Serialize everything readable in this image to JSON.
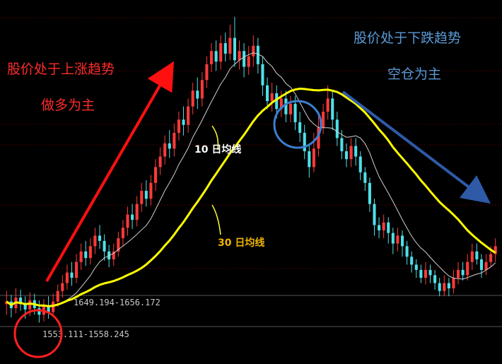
{
  "annotations": {
    "uptrend_title": "股价处于上涨趋势",
    "uptrend_action": "做多为主",
    "downtrend_title": "股价处于下跌趋势",
    "downtrend_action": "空仓为主",
    "ma10_label": "10 日均线",
    "ma30_label": "30 日均线",
    "band_upper": "1649.194-1656.172",
    "band_lower": "1553.111-1558.245"
  },
  "colors": {
    "up_candle": "#ff3a3a",
    "down_candle": "#4fe0e8",
    "ma10": "#d0d0d0",
    "ma30": "#ffff00",
    "arrow_up": "#ff1010",
    "arrow_down": "#2e5aa8",
    "circle_red": "#ff2020",
    "circle_blue": "#3b7fd0"
  },
  "chart_data": {
    "type": "candlestick",
    "title": "",
    "xlabel": "",
    "ylabel": "",
    "ylim": [
      1520,
      1780
    ],
    "series": [
      {
        "name": "10 日均线",
        "type": "line"
      },
      {
        "name": "30 日均线",
        "type": "line"
      }
    ],
    "candles": [
      [
        1560,
        1562,
        1570,
        1552
      ],
      [
        1562,
        1557,
        1567,
        1550
      ],
      [
        1557,
        1565,
        1572,
        1553
      ],
      [
        1565,
        1560,
        1571,
        1555
      ],
      [
        1560,
        1556,
        1566,
        1549
      ],
      [
        1556,
        1563,
        1569,
        1551
      ],
      [
        1563,
        1557,
        1568,
        1552
      ],
      [
        1557,
        1552,
        1563,
        1546
      ],
      [
        1552,
        1559,
        1564,
        1547
      ],
      [
        1559,
        1554,
        1566,
        1549
      ],
      [
        1554,
        1562,
        1568,
        1550
      ],
      [
        1562,
        1570,
        1575,
        1558
      ],
      [
        1570,
        1576,
        1582,
        1565
      ],
      [
        1576,
        1584,
        1590,
        1571
      ],
      [
        1584,
        1580,
        1592,
        1574
      ],
      [
        1580,
        1592,
        1598,
        1576
      ],
      [
        1592,
        1600,
        1606,
        1586
      ],
      [
        1600,
        1595,
        1608,
        1589
      ],
      [
        1595,
        1604,
        1610,
        1590
      ],
      [
        1604,
        1612,
        1618,
        1598
      ],
      [
        1612,
        1608,
        1620,
        1602
      ],
      [
        1608,
        1600,
        1613,
        1593
      ],
      [
        1600,
        1594,
        1605,
        1588
      ],
      [
        1594,
        1600,
        1606,
        1589
      ],
      [
        1600,
        1610,
        1615,
        1596
      ],
      [
        1610,
        1618,
        1624,
        1604
      ],
      [
        1618,
        1628,
        1634,
        1612
      ],
      [
        1628,
        1624,
        1636,
        1617
      ],
      [
        1624,
        1636,
        1642,
        1619
      ],
      [
        1636,
        1646,
        1652,
        1630
      ],
      [
        1646,
        1640,
        1654,
        1634
      ],
      [
        1640,
        1652,
        1658,
        1635
      ],
      [
        1652,
        1664,
        1670,
        1646
      ],
      [
        1664,
        1672,
        1679,
        1658
      ],
      [
        1672,
        1682,
        1688,
        1666
      ],
      [
        1682,
        1678,
        1692,
        1671
      ],
      [
        1678,
        1690,
        1697,
        1672
      ],
      [
        1690,
        1700,
        1706,
        1684
      ],
      [
        1700,
        1696,
        1710,
        1688
      ],
      [
        1696,
        1710,
        1716,
        1690
      ],
      [
        1710,
        1722,
        1728,
        1704
      ],
      [
        1722,
        1716,
        1732,
        1708
      ],
      [
        1716,
        1730,
        1736,
        1710
      ],
      [
        1730,
        1742,
        1748,
        1724
      ],
      [
        1742,
        1752,
        1758,
        1736
      ],
      [
        1752,
        1744,
        1760,
        1737
      ],
      [
        1744,
        1758,
        1764,
        1738
      ],
      [
        1758,
        1750,
        1766,
        1744
      ],
      [
        1750,
        1762,
        1772,
        1745
      ],
      [
        1762,
        1745,
        1778,
        1740
      ],
      [
        1745,
        1752,
        1760,
        1738
      ],
      [
        1752,
        1740,
        1758,
        1732
      ],
      [
        1740,
        1748,
        1756,
        1734
      ],
      [
        1748,
        1756,
        1764,
        1740
      ],
      [
        1756,
        1742,
        1762,
        1735
      ],
      [
        1742,
        1726,
        1748,
        1718
      ],
      [
        1726,
        1714,
        1732,
        1708
      ],
      [
        1714,
        1720,
        1728,
        1706
      ],
      [
        1720,
        1708,
        1726,
        1701
      ],
      [
        1708,
        1716,
        1722,
        1702
      ],
      [
        1716,
        1704,
        1722,
        1698
      ],
      [
        1704,
        1712,
        1718,
        1698
      ],
      [
        1712,
        1698,
        1718,
        1692
      ],
      [
        1698,
        1690,
        1706,
        1683
      ],
      [
        1690,
        1676,
        1696,
        1670
      ],
      [
        1676,
        1664,
        1682,
        1656
      ],
      [
        1664,
        1678,
        1690,
        1660
      ],
      [
        1678,
        1694,
        1704,
        1672
      ],
      [
        1694,
        1706,
        1712,
        1689
      ],
      [
        1706,
        1716,
        1726,
        1700
      ],
      [
        1716,
        1700,
        1722,
        1692
      ],
      [
        1700,
        1686,
        1706,
        1680
      ],
      [
        1686,
        1676,
        1692,
        1670
      ],
      [
        1676,
        1670,
        1682,
        1664
      ],
      [
        1670,
        1680,
        1686,
        1664
      ],
      [
        1680,
        1672,
        1686,
        1665
      ],
      [
        1672,
        1660,
        1676,
        1654
      ],
      [
        1660,
        1652,
        1664,
        1646
      ],
      [
        1652,
        1636,
        1656,
        1630
      ],
      [
        1636,
        1620,
        1640,
        1612
      ],
      [
        1620,
        1616,
        1626,
        1610
      ],
      [
        1616,
        1622,
        1628,
        1610
      ],
      [
        1622,
        1614,
        1626,
        1606
      ],
      [
        1614,
        1606,
        1618,
        1598
      ],
      [
        1606,
        1612,
        1618,
        1600
      ],
      [
        1612,
        1604,
        1616,
        1596
      ],
      [
        1604,
        1596,
        1608,
        1590
      ],
      [
        1596,
        1590,
        1600,
        1584
      ],
      [
        1590,
        1586,
        1594,
        1580
      ],
      [
        1586,
        1580,
        1590,
        1576
      ],
      [
        1580,
        1586,
        1592,
        1575
      ],
      [
        1586,
        1582,
        1590,
        1576
      ],
      [
        1582,
        1576,
        1586,
        1571
      ],
      [
        1576,
        1570,
        1580,
        1566
      ],
      [
        1570,
        1576,
        1582,
        1566
      ],
      [
        1576,
        1572,
        1580,
        1566
      ],
      [
        1572,
        1580,
        1586,
        1568
      ],
      [
        1580,
        1586,
        1592,
        1575
      ],
      [
        1586,
        1582,
        1592,
        1578
      ],
      [
        1582,
        1592,
        1598,
        1578
      ],
      [
        1592,
        1600,
        1606,
        1586
      ],
      [
        1600,
        1594,
        1606,
        1590
      ],
      [
        1594,
        1586,
        1598,
        1580
      ],
      [
        1586,
        1592,
        1598,
        1582
      ],
      [
        1592,
        1598,
        1604,
        1588
      ],
      [
        1598,
        1604,
        1610,
        1592
      ]
    ]
  }
}
